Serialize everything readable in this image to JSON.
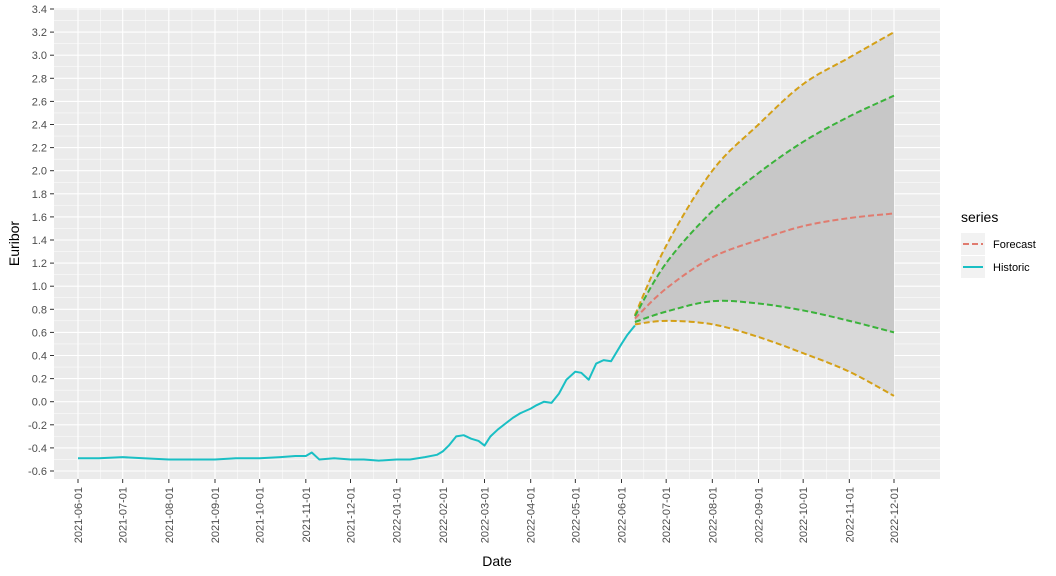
{
  "chart_data": {
    "type": "line",
    "title": "",
    "xlabel": "Date",
    "ylabel": "Euribor",
    "ylim": [
      -0.6,
      3.4
    ],
    "yticks": [
      "-0.6",
      "-0.4",
      "-0.2",
      "0.0",
      "0.2",
      "0.4",
      "0.6",
      "0.8",
      "1.0",
      "1.2",
      "1.4",
      "1.6",
      "1.8",
      "2.0",
      "2.2",
      "2.4",
      "2.6",
      "2.8",
      "3.0",
      "3.2",
      "3.4"
    ],
    "xticks": [
      "2021-06-01",
      "2021-07-01",
      "2021-08-01",
      "2021-09-01",
      "2021-10-01",
      "2021-11-01",
      "2021-12-01",
      "2022-01-01",
      "2022-02-01",
      "2022-03-01",
      "2022-04-01",
      "2022-05-01",
      "2022-06-01",
      "2022-07-01",
      "2022-08-01",
      "2022-09-01",
      "2022-10-01",
      "2022-11-01",
      "2022-12-01"
    ],
    "legend": {
      "title": "series",
      "position": "right",
      "entries": [
        {
          "label": "Forecast",
          "style": "dashed",
          "color": "#E07B6F"
        },
        {
          "label": "Historic",
          "style": "solid",
          "color": "#1ABFC4"
        }
      ]
    },
    "colors": {
      "panel": "#EBEBEB",
      "grid": "#FFFFFF",
      "historic": "#1ABFC4",
      "forecast": "#E07B6F",
      "outer_band": "#D4A017",
      "inner_band": "#3BB33B",
      "ribbon_outer": "#D9D9D9",
      "ribbon_inner": "#C7C7C7"
    },
    "series": [
      {
        "name": "Historic",
        "x": [
          "2021-06-01",
          "2021-06-15",
          "2021-07-01",
          "2021-07-15",
          "2021-08-01",
          "2021-08-15",
          "2021-09-01",
          "2021-09-15",
          "2021-10-01",
          "2021-10-15",
          "2021-10-25",
          "2021-11-01",
          "2021-11-05",
          "2021-11-10",
          "2021-11-20",
          "2021-12-01",
          "2021-12-10",
          "2021-12-20",
          "2022-01-01",
          "2022-01-10",
          "2022-01-20",
          "2022-01-28",
          "2022-02-01",
          "2022-02-05",
          "2022-02-10",
          "2022-02-15",
          "2022-02-20",
          "2022-02-25",
          "2022-03-01",
          "2022-03-05",
          "2022-03-10",
          "2022-03-15",
          "2022-03-20",
          "2022-03-25",
          "2022-04-01",
          "2022-04-05",
          "2022-04-10",
          "2022-04-15",
          "2022-04-20",
          "2022-04-25",
          "2022-05-01",
          "2022-05-05",
          "2022-05-10",
          "2022-05-15",
          "2022-05-20",
          "2022-05-25",
          "2022-06-01",
          "2022-06-05",
          "2022-06-10"
        ],
        "values": [
          -0.49,
          -0.49,
          -0.48,
          -0.49,
          -0.5,
          -0.5,
          -0.5,
          -0.49,
          -0.49,
          -0.48,
          -0.47,
          -0.47,
          -0.44,
          -0.5,
          -0.49,
          -0.5,
          -0.5,
          -0.51,
          -0.5,
          -0.5,
          -0.48,
          -0.46,
          -0.43,
          -0.38,
          -0.3,
          -0.29,
          -0.32,
          -0.34,
          -0.38,
          -0.3,
          -0.24,
          -0.19,
          -0.14,
          -0.1,
          -0.06,
          -0.03,
          0.0,
          -0.01,
          0.07,
          0.19,
          0.26,
          0.25,
          0.19,
          0.33,
          0.36,
          0.35,
          0.5,
          0.58,
          0.66
        ]
      },
      {
        "name": "Forecast",
        "x": [
          "2022-06-10",
          "2022-07-01",
          "2022-08-01",
          "2022-09-01",
          "2022-10-01",
          "2022-11-01",
          "2022-12-01"
        ],
        "values": [
          0.72,
          0.98,
          1.25,
          1.4,
          1.52,
          1.59,
          1.63
        ]
      },
      {
        "name": "Upper 95",
        "x": [
          "2022-06-10",
          "2022-07-01",
          "2022-08-01",
          "2022-09-01",
          "2022-10-01",
          "2022-11-01",
          "2022-12-01"
        ],
        "values": [
          0.75,
          1.35,
          2.0,
          2.4,
          2.75,
          2.98,
          3.2
        ]
      },
      {
        "name": "Upper 80",
        "x": [
          "2022-06-10",
          "2022-07-01",
          "2022-08-01",
          "2022-09-01",
          "2022-10-01",
          "2022-11-01",
          "2022-12-01"
        ],
        "values": [
          0.74,
          1.2,
          1.65,
          1.98,
          2.25,
          2.47,
          2.65
        ]
      },
      {
        "name": "Lower 80",
        "x": [
          "2022-06-10",
          "2022-07-01",
          "2022-08-01",
          "2022-09-01",
          "2022-10-01",
          "2022-11-01",
          "2022-12-01"
        ],
        "values": [
          0.69,
          0.78,
          0.87,
          0.85,
          0.79,
          0.7,
          0.6
        ]
      },
      {
        "name": "Lower 95",
        "x": [
          "2022-06-10",
          "2022-07-01",
          "2022-08-01",
          "2022-09-01",
          "2022-10-01",
          "2022-11-01",
          "2022-12-01"
        ],
        "values": [
          0.67,
          0.7,
          0.67,
          0.56,
          0.42,
          0.26,
          0.05
        ]
      }
    ]
  }
}
